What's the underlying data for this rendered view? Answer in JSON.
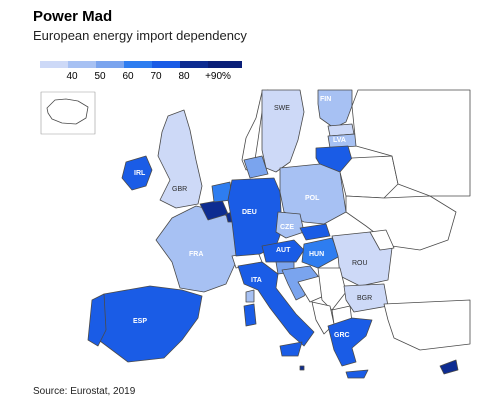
{
  "title": "Power Mad",
  "subtitle": "European energy import dependency",
  "legend": {
    "labels": [
      "40",
      "50",
      "60",
      "70",
      "80",
      "+90%"
    ],
    "colors": [
      "#cdd9f7",
      "#a7c1f3",
      "#7aa4ee",
      "#2e7df0",
      "#1a5ce6",
      "#0d2c91",
      "#0a1f78"
    ]
  },
  "colors": {
    "no_data": "#ffffff",
    "border": "#4a4a4a",
    "sea": "#ffffff"
  },
  "countries": [
    {
      "code": "SWE",
      "label": "SWE"
    },
    {
      "code": "FIN",
      "label": "FIN"
    },
    {
      "code": "LVA",
      "label": "LVA"
    },
    {
      "code": "IRL",
      "label": "IRL"
    },
    {
      "code": "GBR",
      "label": "GBR"
    },
    {
      "code": "DEU",
      "label": "DEU"
    },
    {
      "code": "POL",
      "label": "POL"
    },
    {
      "code": "CZE",
      "label": "CZE"
    },
    {
      "code": "FRA",
      "label": "FRA"
    },
    {
      "code": "AUT",
      "label": "AUT"
    },
    {
      "code": "HUN",
      "label": "HUN"
    },
    {
      "code": "ROU",
      "label": "ROU"
    },
    {
      "code": "ITA",
      "label": "ITA"
    },
    {
      "code": "BGR",
      "label": "BGR"
    },
    {
      "code": "ESP",
      "label": "ESP"
    },
    {
      "code": "GRC",
      "label": "GRC"
    }
  ],
  "source": "Source: Eurostat, 2019"
}
